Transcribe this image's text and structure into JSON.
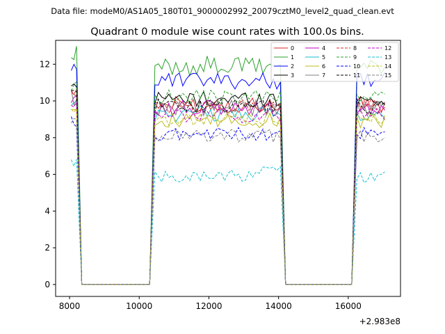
{
  "chart_data": {
    "type": "line",
    "suptitle": "Data file: modeM0/AS1A05_180T01_9000002992_20079cztM0_level2_quad_clean.evt",
    "title": "Quadrant 0 module wise count rates with 100.0s bins.",
    "xlabel": "",
    "ylabel": "",
    "x_offset_label": "+2.983e8",
    "xlim": [
      7600,
      17500
    ],
    "ylim": [
      -0.65,
      13.3
    ],
    "x_ticks": [
      8000,
      10000,
      12000,
      14000,
      16000
    ],
    "y_ticks": [
      0,
      2,
      4,
      6,
      8,
      10,
      12
    ],
    "legend_position": "top-right",
    "segments": [
      {
        "start": 8050,
        "end": 8200,
        "bins": 3
      },
      {
        "start": 10450,
        "end": 14050,
        "bins": 37
      },
      {
        "start": 16250,
        "end": 17050,
        "bins": 9
      }
    ],
    "series": [
      {
        "name": "0",
        "color": "#d62728",
        "dash": "solid",
        "level": 9.8,
        "amp": 0.45
      },
      {
        "name": "1",
        "color": "#2ca02c",
        "dash": "solid",
        "level": 11.9,
        "amp": 0.55
      },
      {
        "name": "2",
        "color": "#0000ff",
        "dash": "solid",
        "level": 11.1,
        "amp": 0.45
      },
      {
        "name": "3",
        "color": "#000000",
        "dash": "solid",
        "level": 10.1,
        "amp": 0.45
      },
      {
        "name": "4",
        "color": "#bf00bf",
        "dash": "solid",
        "level": 9.6,
        "amp": 0.45
      },
      {
        "name": "5",
        "color": "#17becf",
        "dash": "solid",
        "level": 9.3,
        "amp": 0.45
      },
      {
        "name": "6",
        "color": "#bcbd22",
        "dash": "solid",
        "level": 8.9,
        "amp": 0.45
      },
      {
        "name": "7",
        "color": "#7f7f7f",
        "dash": "solid",
        "level": 9.6,
        "amp": 0.45
      },
      {
        "name": "8",
        "color": "#d62728",
        "dash": "dashed",
        "level": 9.7,
        "amp": 0.4
      },
      {
        "name": "9",
        "color": "#2ca02c",
        "dash": "dashed",
        "level": 10.2,
        "amp": 0.4
      },
      {
        "name": "10",
        "color": "#0000ff",
        "dash": "dashed",
        "level": 8.2,
        "amp": 0.35
      },
      {
        "name": "11",
        "color": "#000000",
        "dash": "dashed",
        "level": 9.7,
        "amp": 0.4
      },
      {
        "name": "12",
        "color": "#bf00bf",
        "dash": "dashed",
        "level": 9.2,
        "amp": 0.4
      },
      {
        "name": "13",
        "color": "#17becf",
        "dash": "dashed",
        "level": 5.9,
        "amp": 0.35
      },
      {
        "name": "14",
        "color": "#bcbd22",
        "dash": "dashed",
        "level": 9.0,
        "amp": 0.4
      },
      {
        "name": "15",
        "color": "#7f7f7f",
        "dash": "dashed",
        "level": 8.1,
        "amp": 0.35
      }
    ]
  }
}
